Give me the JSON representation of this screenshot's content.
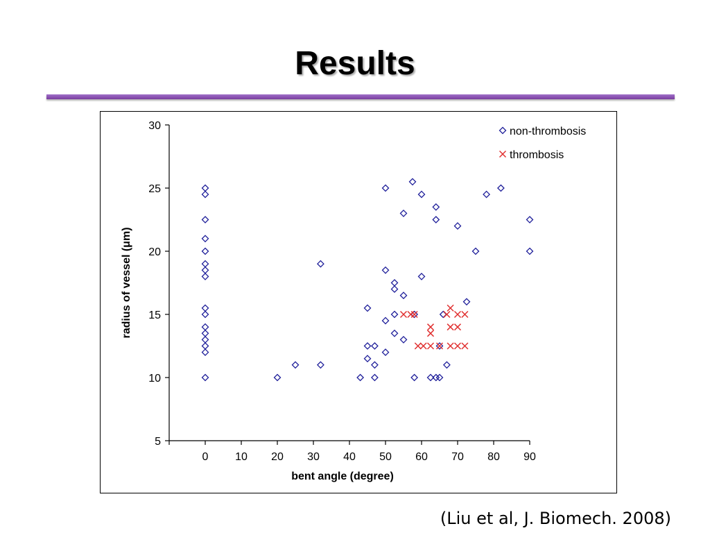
{
  "slide": {
    "title": "Results",
    "citation": "(Liu et al, J. Biomech. 2008)"
  },
  "colors": {
    "accent_rule": "#8e44ad",
    "non_thrombosis": "#1f1f9a",
    "thrombosis": "#e03030"
  },
  "chart_data": {
    "type": "scatter",
    "xlabel": "bent angle (degree)",
    "ylabel": "radius of vessel (μm)",
    "xlim": [
      -10,
      90
    ],
    "ylim": [
      5,
      30
    ],
    "xticks": [
      0,
      10,
      20,
      30,
      40,
      50,
      60,
      70,
      80,
      90
    ],
    "yticks": [
      5,
      10,
      15,
      20,
      25,
      30
    ],
    "grid": false,
    "legend_position": "top-right",
    "series": [
      {
        "name": "non-thrombosis",
        "marker": "diamond",
        "color": "#1f1f9a",
        "points": [
          [
            0,
            25
          ],
          [
            0,
            24.5
          ],
          [
            0,
            22.5
          ],
          [
            0,
            21
          ],
          [
            0,
            20
          ],
          [
            0,
            19
          ],
          [
            0,
            18.5
          ],
          [
            0,
            18
          ],
          [
            0,
            15.5
          ],
          [
            0,
            15
          ],
          [
            0,
            14
          ],
          [
            0,
            13.5
          ],
          [
            0,
            13
          ],
          [
            0,
            12.5
          ],
          [
            0,
            12
          ],
          [
            0,
            10
          ],
          [
            20,
            10
          ],
          [
            25,
            11
          ],
          [
            32,
            19
          ],
          [
            32,
            11
          ],
          [
            43,
            10
          ],
          [
            45,
            15.5
          ],
          [
            45,
            12.5
          ],
          [
            45,
            11.5
          ],
          [
            47,
            12.5
          ],
          [
            47,
            11
          ],
          [
            47,
            10
          ],
          [
            50,
            25
          ],
          [
            50,
            18.5
          ],
          [
            50,
            14.5
          ],
          [
            50,
            12
          ],
          [
            52.5,
            17.5
          ],
          [
            52.5,
            17
          ],
          [
            52.5,
            15
          ],
          [
            52.5,
            13.5
          ],
          [
            55,
            23
          ],
          [
            55,
            16.5
          ],
          [
            55,
            13
          ],
          [
            57.5,
            25.5
          ],
          [
            58,
            15
          ],
          [
            58,
            10
          ],
          [
            60,
            24.5
          ],
          [
            60,
            18
          ],
          [
            62.5,
            10
          ],
          [
            64,
            23.5
          ],
          [
            64,
            22.5
          ],
          [
            64,
            10
          ],
          [
            65,
            12.5
          ],
          [
            65,
            10
          ],
          [
            66,
            15
          ],
          [
            67,
            11
          ],
          [
            70,
            22
          ],
          [
            72.5,
            16
          ],
          [
            75,
            20
          ],
          [
            78,
            24.5
          ],
          [
            82,
            25
          ],
          [
            90,
            22.5
          ],
          [
            90,
            20
          ]
        ]
      },
      {
        "name": "thrombosis",
        "marker": "x",
        "color": "#e03030",
        "points": [
          [
            55,
            15
          ],
          [
            57,
            15
          ],
          [
            58,
            15
          ],
          [
            59,
            12.5
          ],
          [
            60.5,
            12.5
          ],
          [
            62.5,
            14
          ],
          [
            62.5,
            13.5
          ],
          [
            62.5,
            12.5
          ],
          [
            65,
            12.5
          ],
          [
            67,
            15
          ],
          [
            68,
            15.5
          ],
          [
            68,
            14
          ],
          [
            68,
            12.5
          ],
          [
            70,
            15
          ],
          [
            70,
            14
          ],
          [
            70,
            12.5
          ],
          [
            72,
            15
          ],
          [
            72,
            12.5
          ]
        ]
      }
    ]
  }
}
